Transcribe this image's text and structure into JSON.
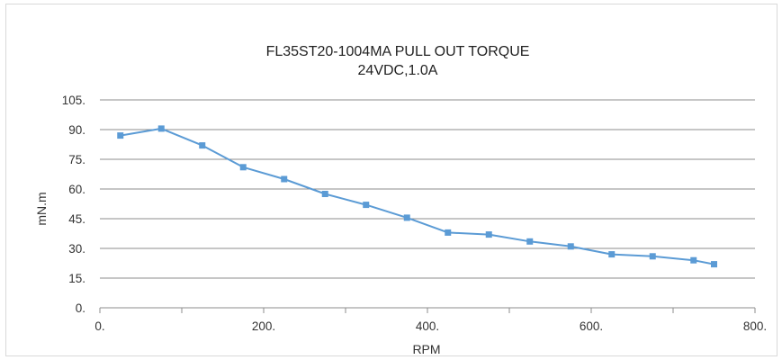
{
  "chart_data": {
    "type": "line",
    "title": "FL35ST20-1004MA  PULL OUT TORQUE",
    "subtitle": "24VDC,1.0A",
    "xlabel": "RPM",
    "ylabel": "mN.m",
    "xlim": [
      0,
      800
    ],
    "ylim": [
      0,
      105
    ],
    "x_ticks": [
      0,
      200,
      400,
      600,
      800
    ],
    "x_tick_labels": [
      "0.",
      "200.",
      "400.",
      "600.",
      "800."
    ],
    "y_ticks": [
      0,
      15,
      30,
      45,
      60,
      75,
      90,
      105
    ],
    "y_tick_labels": [
      "0.",
      "15.",
      "30.",
      "45.",
      "60.",
      "75.",
      "90.",
      "105."
    ],
    "grid": "horizontal",
    "series": [
      {
        "color": "#5b9bd5",
        "marker": "square",
        "x": [
          25,
          75,
          125,
          175,
          225,
          275,
          325,
          375,
          425,
          475,
          525,
          575,
          625,
          675,
          725,
          750
        ],
        "y": [
          87,
          90.5,
          82,
          71,
          65,
          57.5,
          52,
          45.5,
          38,
          37,
          33.5,
          31,
          27,
          26,
          24,
          22
        ]
      }
    ]
  }
}
